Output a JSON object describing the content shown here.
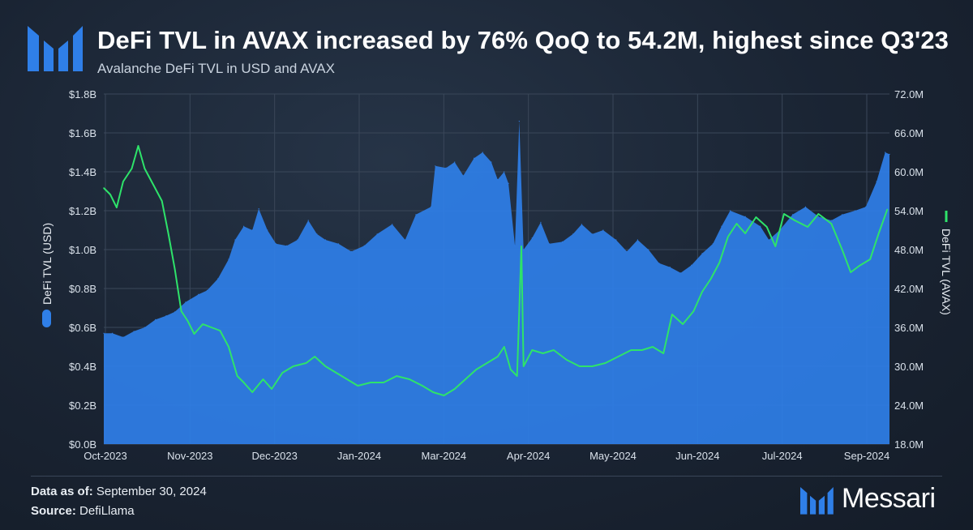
{
  "header": {
    "title": "DeFi TVL in AVAX increased by 76% QoQ to 54.2M, highest since Q3'23",
    "subtitle": "Avalanche DeFi TVL in USD and AVAX"
  },
  "footer": {
    "data_as_of_label": "Data as of:",
    "data_as_of_value": "September 30, 2024",
    "source_label": "Source:",
    "source_value": "DefiLlama",
    "brand_name": "Messari"
  },
  "colors": {
    "usd_area": "#2f7fe8",
    "avax_line": "#2ee36a",
    "background": "#1a2433",
    "logo": "#2f7fe8"
  },
  "chart_data": {
    "type": "area",
    "xlabel": "",
    "y_left_label": "DeFi TVL (USD)",
    "y_right_label": "DeFi TVL (AVAX)",
    "x_tick_labels": [
      "Oct-2023",
      "Nov-2023",
      "Dec-2023",
      "Jan-2024",
      "Mar-2024",
      "Apr-2024",
      "May-2024",
      "Jun-2024",
      "Jul-2024",
      "Sep-2024"
    ],
    "y_left_ticks": [
      "$0.0B",
      "$0.2B",
      "$0.4B",
      "$0.6B",
      "$0.8B",
      "$1.0B",
      "$1.2B",
      "$1.4B",
      "$1.6B",
      "$1.8B"
    ],
    "y_right_ticks": [
      "18.0M",
      "24.0M",
      "30.0M",
      "36.0M",
      "42.0M",
      "48.0M",
      "54.0M",
      "60.0M",
      "66.0M",
      "72.0M"
    ],
    "y_left_range": [
      0,
      1.8
    ],
    "y_right_range": [
      18,
      72
    ],
    "grid": true,
    "legend_position": "axis-labels",
    "x_range": [
      "2023-10-01",
      "2024-09-30"
    ],
    "series": [
      {
        "name": "DeFi TVL (USD)",
        "type": "area",
        "axis": "left",
        "unit": "B USD",
        "points": [
          [
            "2023-10-01",
            0.57
          ],
          [
            "2023-10-05",
            0.57
          ],
          [
            "2023-10-10",
            0.55
          ],
          [
            "2023-10-15",
            0.58
          ],
          [
            "2023-10-20",
            0.6
          ],
          [
            "2023-10-25",
            0.64
          ],
          [
            "2023-10-30",
            0.66
          ],
          [
            "2023-11-03",
            0.68
          ],
          [
            "2023-11-08",
            0.73
          ],
          [
            "2023-11-14",
            0.77
          ],
          [
            "2023-11-18",
            0.79
          ],
          [
            "2023-11-23",
            0.85
          ],
          [
            "2023-11-28",
            0.95
          ],
          [
            "2023-12-01",
            1.05
          ],
          [
            "2023-12-05",
            1.12
          ],
          [
            "2023-12-09",
            1.1
          ],
          [
            "2023-12-12",
            1.21
          ],
          [
            "2023-12-16",
            1.1
          ],
          [
            "2023-12-20",
            1.03
          ],
          [
            "2023-12-25",
            1.02
          ],
          [
            "2023-12-30",
            1.05
          ],
          [
            "2024-01-04",
            1.15
          ],
          [
            "2024-01-08",
            1.08
          ],
          [
            "2024-01-12",
            1.05
          ],
          [
            "2024-01-18",
            1.03
          ],
          [
            "2024-01-24",
            0.99
          ],
          [
            "2024-01-30",
            1.02
          ],
          [
            "2024-02-05",
            1.08
          ],
          [
            "2024-02-12",
            1.13
          ],
          [
            "2024-02-18",
            1.05
          ],
          [
            "2024-02-23",
            1.18
          ],
          [
            "2024-03-01",
            1.22
          ],
          [
            "2024-03-03",
            1.43
          ],
          [
            "2024-03-08",
            1.42
          ],
          [
            "2024-03-12",
            1.45
          ],
          [
            "2024-03-16",
            1.38
          ],
          [
            "2024-03-21",
            1.47
          ],
          [
            "2024-03-25",
            1.5
          ],
          [
            "2024-03-29",
            1.45
          ],
          [
            "2024-04-01",
            1.36
          ],
          [
            "2024-04-04",
            1.4
          ],
          [
            "2024-04-06",
            1.34
          ],
          [
            "2024-04-09",
            1.02
          ],
          [
            "2024-04-11",
            1.66
          ],
          [
            "2024-04-13",
            1.0
          ],
          [
            "2024-04-17",
            1.06
          ],
          [
            "2024-04-21",
            1.14
          ],
          [
            "2024-04-25",
            1.03
          ],
          [
            "2024-05-01",
            1.04
          ],
          [
            "2024-05-06",
            1.08
          ],
          [
            "2024-05-10",
            1.13
          ],
          [
            "2024-05-15",
            1.08
          ],
          [
            "2024-05-20",
            1.1
          ],
          [
            "2024-05-26",
            1.05
          ],
          [
            "2024-05-31",
            0.99
          ],
          [
            "2024-06-05",
            1.05
          ],
          [
            "2024-06-10",
            1.0
          ],
          [
            "2024-06-15",
            0.93
          ],
          [
            "2024-06-20",
            0.91
          ],
          [
            "2024-06-25",
            0.88
          ],
          [
            "2024-06-30",
            0.92
          ],
          [
            "2024-07-05",
            0.98
          ],
          [
            "2024-07-10",
            1.03
          ],
          [
            "2024-07-14",
            1.12
          ],
          [
            "2024-07-18",
            1.2
          ],
          [
            "2024-07-25",
            1.17
          ],
          [
            "2024-08-01",
            1.12
          ],
          [
            "2024-08-05",
            1.05
          ],
          [
            "2024-08-10",
            1.1
          ],
          [
            "2024-08-16",
            1.18
          ],
          [
            "2024-08-22",
            1.22
          ],
          [
            "2024-08-28",
            1.17
          ],
          [
            "2024-09-03",
            1.15
          ],
          [
            "2024-09-08",
            1.18
          ],
          [
            "2024-09-14",
            1.2
          ],
          [
            "2024-09-19",
            1.22
          ],
          [
            "2024-09-24",
            1.35
          ],
          [
            "2024-09-28",
            1.5
          ],
          [
            "2024-09-30",
            1.49
          ]
        ]
      },
      {
        "name": "DeFi TVL (AVAX)",
        "type": "line",
        "axis": "right",
        "unit": "M AVAX",
        "points": [
          [
            "2023-10-01",
            57.5
          ],
          [
            "2023-10-04",
            56.5
          ],
          [
            "2023-10-07",
            54.5
          ],
          [
            "2023-10-10",
            58.5
          ],
          [
            "2023-10-14",
            60.5
          ],
          [
            "2023-10-17",
            64.0
          ],
          [
            "2023-10-20",
            60.5
          ],
          [
            "2023-10-24",
            58.0
          ],
          [
            "2023-10-28",
            55.5
          ],
          [
            "2023-10-31",
            50.5
          ],
          [
            "2023-11-03",
            45.0
          ],
          [
            "2023-11-06",
            38.5
          ],
          [
            "2023-11-09",
            37.0
          ],
          [
            "2023-11-12",
            35.0
          ],
          [
            "2023-11-16",
            36.5
          ],
          [
            "2023-11-20",
            36.0
          ],
          [
            "2023-11-24",
            35.5
          ],
          [
            "2023-11-28",
            33.0
          ],
          [
            "2023-12-02",
            28.5
          ],
          [
            "2023-12-05",
            27.5
          ],
          [
            "2023-12-09",
            26.0
          ],
          [
            "2023-12-14",
            28.0
          ],
          [
            "2023-12-18",
            26.5
          ],
          [
            "2023-12-23",
            29.0
          ],
          [
            "2023-12-28",
            30.0
          ],
          [
            "2024-01-03",
            30.5
          ],
          [
            "2024-01-07",
            31.5
          ],
          [
            "2024-01-12",
            30.0
          ],
          [
            "2024-01-17",
            29.0
          ],
          [
            "2024-01-22",
            28.0
          ],
          [
            "2024-01-27",
            27.0
          ],
          [
            "2024-02-02",
            27.5
          ],
          [
            "2024-02-08",
            27.5
          ],
          [
            "2024-02-14",
            28.5
          ],
          [
            "2024-02-20",
            28.0
          ],
          [
            "2024-02-26",
            27.0
          ],
          [
            "2024-03-02",
            26.0
          ],
          [
            "2024-03-07",
            25.5
          ],
          [
            "2024-03-12",
            26.5
          ],
          [
            "2024-03-17",
            28.0
          ],
          [
            "2024-03-22",
            29.5
          ],
          [
            "2024-03-27",
            30.5
          ],
          [
            "2024-04-01",
            31.5
          ],
          [
            "2024-04-04",
            33.0
          ],
          [
            "2024-04-07",
            29.5
          ],
          [
            "2024-04-10",
            28.5
          ],
          [
            "2024-04-12",
            48.5
          ],
          [
            "2024-04-13",
            30.0
          ],
          [
            "2024-04-17",
            32.5
          ],
          [
            "2024-04-22",
            32.0
          ],
          [
            "2024-04-27",
            32.5
          ],
          [
            "2024-05-03",
            31.0
          ],
          [
            "2024-05-09",
            30.0
          ],
          [
            "2024-05-15",
            30.0
          ],
          [
            "2024-05-21",
            30.5
          ],
          [
            "2024-05-27",
            31.5
          ],
          [
            "2024-06-02",
            32.5
          ],
          [
            "2024-06-07",
            32.5
          ],
          [
            "2024-06-12",
            33.0
          ],
          [
            "2024-06-17",
            32.0
          ],
          [
            "2024-06-21",
            38.0
          ],
          [
            "2024-06-26",
            36.5
          ],
          [
            "2024-07-01",
            38.5
          ],
          [
            "2024-07-05",
            41.5
          ],
          [
            "2024-07-09",
            43.5
          ],
          [
            "2024-07-13",
            46.0
          ],
          [
            "2024-07-17",
            50.0
          ],
          [
            "2024-07-21",
            52.0
          ],
          [
            "2024-07-25",
            50.5
          ],
          [
            "2024-07-30",
            53.0
          ],
          [
            "2024-08-04",
            51.5
          ],
          [
            "2024-08-08",
            48.5
          ],
          [
            "2024-08-12",
            53.5
          ],
          [
            "2024-08-17",
            52.5
          ],
          [
            "2024-08-23",
            51.5
          ],
          [
            "2024-08-28",
            53.5
          ],
          [
            "2024-09-03",
            52.0
          ],
          [
            "2024-09-08",
            48.0
          ],
          [
            "2024-09-12",
            44.5
          ],
          [
            "2024-09-16",
            45.5
          ],
          [
            "2024-09-21",
            46.5
          ],
          [
            "2024-09-25",
            50.5
          ],
          [
            "2024-09-29",
            54.2
          ]
        ]
      }
    ]
  }
}
